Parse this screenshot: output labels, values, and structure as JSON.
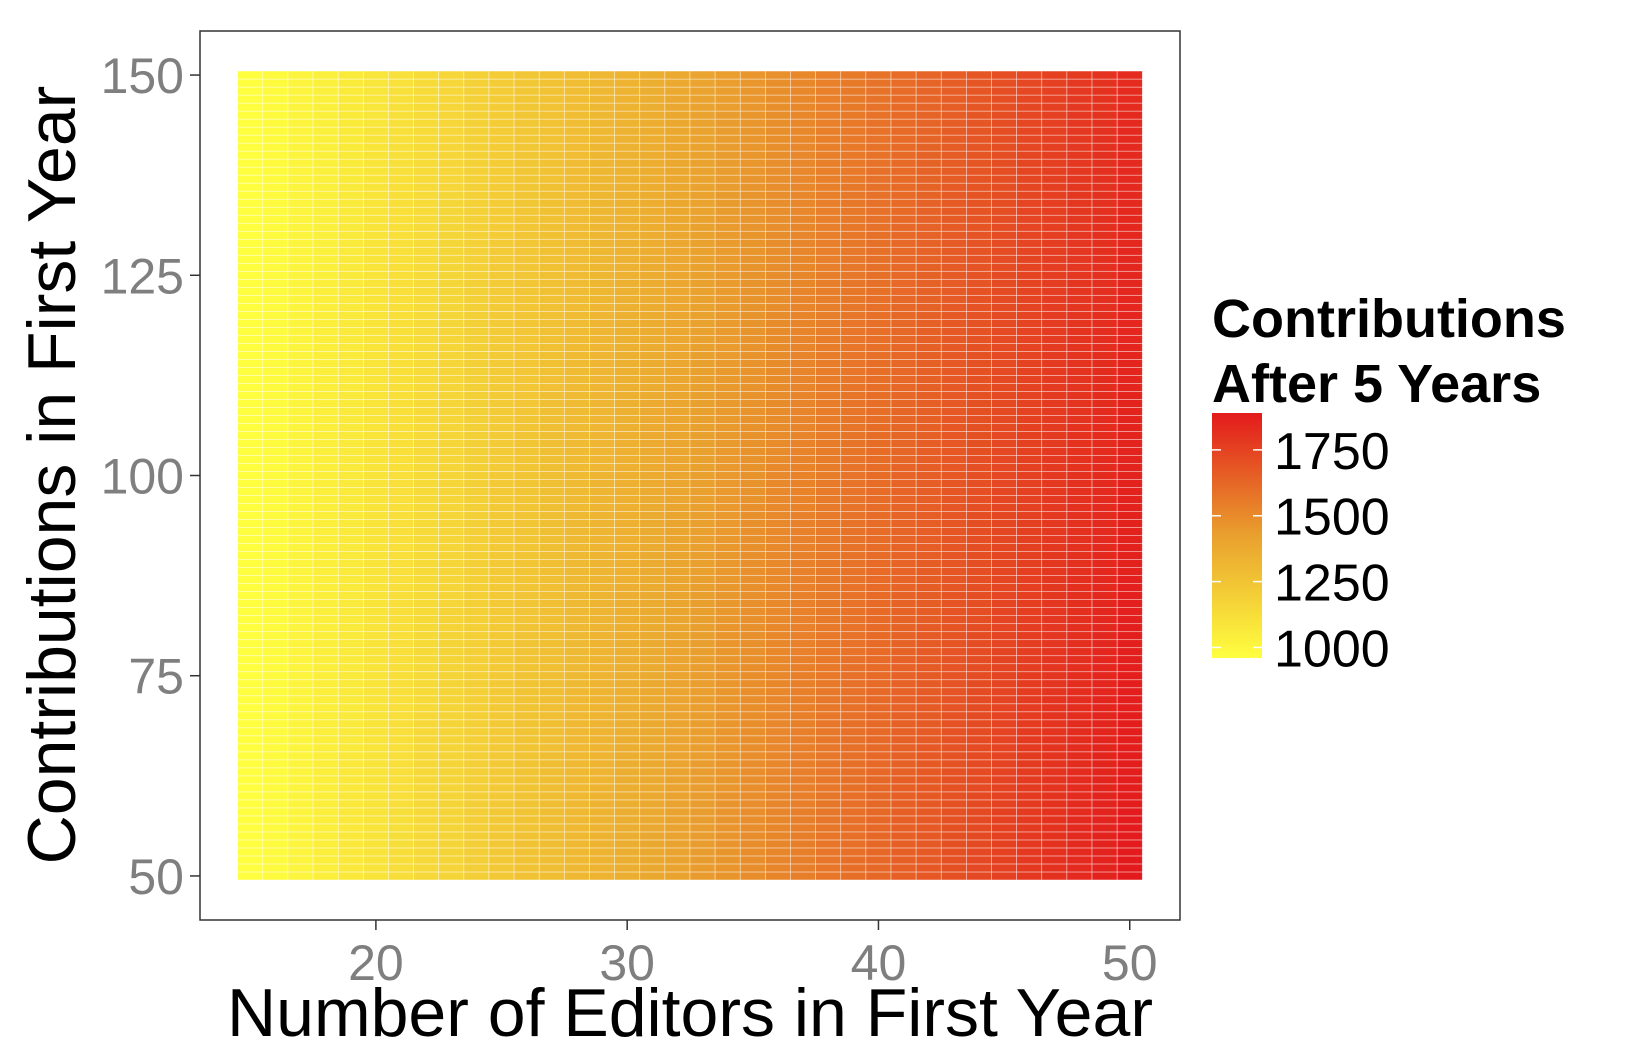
{
  "chart_data": {
    "type": "heatmap",
    "title": "",
    "xlabel": "Number of Editors in First Year",
    "ylabel": "Contributions in First Year",
    "x": {
      "min": 15,
      "max": 50,
      "step": 1
    },
    "y": {
      "min": 50,
      "max": 150,
      "step": 1
    },
    "xlim": [
      13,
      52
    ],
    "ylim": [
      44.5,
      155.5
    ],
    "x_ticks": [
      20,
      30,
      40,
      50
    ],
    "y_ticks": [
      50,
      75,
      100,
      125,
      150
    ],
    "x_tick_labels": [
      "20",
      "30",
      "40",
      "50"
    ],
    "y_tick_labels": [
      "50",
      "75",
      "100",
      "125",
      "150"
    ],
    "value_model": {
      "description": "Contributions after 5 years, estimated from colour",
      "corner_values": {
        "x15_y50": 960,
        "x15_y150": 960,
        "x50_y50": 1890,
        "x50_y150": 1830
      }
    },
    "legend": {
      "title_lines": [
        "Contributions",
        "After 5 Years"
      ],
      "placement": "right",
      "range": [
        960,
        1890
      ],
      "breaks": [
        1000,
        1250,
        1500,
        1750
      ],
      "break_labels": [
        "1000",
        "1250",
        "1500",
        "1750"
      ]
    },
    "colors": {
      "low": "#FFFF3F",
      "mid": "#E9A02E",
      "high": "#E31A1C",
      "cell_border": "#ffffff",
      "panel_border": "#333333",
      "tick_text": "#7f7f7f"
    },
    "grid": false
  }
}
